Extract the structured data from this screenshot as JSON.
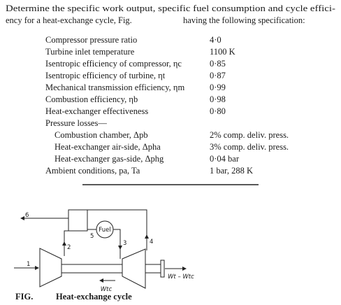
{
  "problem": {
    "line1": "Determine the specific work output, specific fuel consumption and cycle effici-",
    "line2a": "ency for a heat-exchange cycle, Fig.",
    "line2b": "having the following specification:"
  },
  "specification": [
    {
      "label": "Compressor pressure ratio",
      "value": "4·0"
    },
    {
      "label": "Turbine inlet temperature",
      "value": "1100 K"
    },
    {
      "label": "Isentropic efficiency of compressor, ηc",
      "value": "0·85"
    },
    {
      "label": "Isentropic efficiency of turbine, ηt",
      "value": "0·87"
    },
    {
      "label": "Mechanical transmission efficiency, ηm",
      "value": "0·99"
    },
    {
      "label": "Combustion efficiency, ηb",
      "value": "0·98"
    },
    {
      "label": "Heat-exchanger effectiveness",
      "value": "0·80"
    },
    {
      "label": "Pressure losses—"
    },
    {
      "label": "Combustion chamber, Δpb",
      "value": "2% comp. deliv. press."
    },
    {
      "label": "Heat-exchanger air-side, Δpha",
      "value": "3% comp. deliv. press."
    },
    {
      "label": "Heat-exchanger gas-side, Δphg",
      "value": "0·04 bar"
    },
    {
      "label": "Ambient conditions, pa, Ta",
      "value": "1 bar, 288 K"
    }
  ],
  "diagram": {
    "stations": [
      "1",
      "2",
      "3",
      "4",
      "5",
      "6"
    ],
    "fuel": "Fuel",
    "compressor_work": "Wtc",
    "net_work": "Wt – Wtc"
  },
  "caption": {
    "label": "FIG.",
    "title": "Heat-exchange cycle"
  }
}
